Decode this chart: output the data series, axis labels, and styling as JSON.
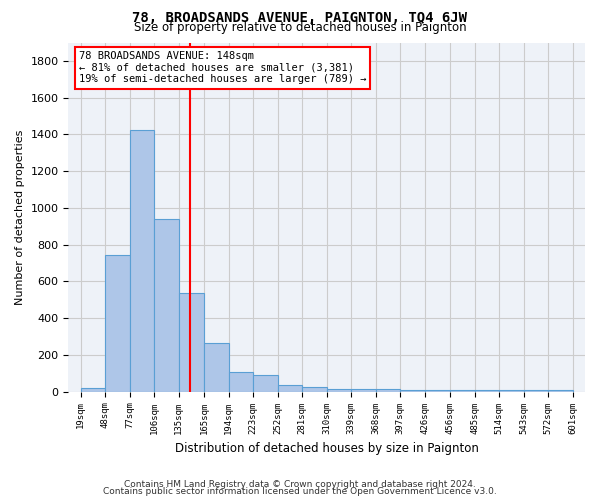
{
  "title": "78, BROADSANDS AVENUE, PAIGNTON, TQ4 6JW",
  "subtitle": "Size of property relative to detached houses in Paignton",
  "xlabel": "Distribution of detached houses by size in Paignton",
  "ylabel": "Number of detached properties",
  "footer_line1": "Contains HM Land Registry data © Crown copyright and database right 2024.",
  "footer_line2": "Contains public sector information licensed under the Open Government Licence v3.0.",
  "bin_edges": [
    19,
    48,
    77,
    106,
    135,
    165,
    194,
    223,
    252,
    281,
    310,
    339,
    368,
    397,
    426,
    456,
    485,
    514,
    543,
    572,
    601
  ],
  "bar_heights": [
    22,
    745,
    1425,
    940,
    535,
    265,
    105,
    92,
    35,
    28,
    15,
    12,
    12,
    10,
    10,
    10,
    10,
    10,
    10,
    10
  ],
  "bar_color": "#aec6e8",
  "bar_edge_color": "#5a9fd4",
  "grid_color": "#cccccc",
  "bg_color": "#eef2f8",
  "annotation_text": "78 BROADSANDS AVENUE: 148sqm\n← 81% of detached houses are smaller (3,381)\n19% of semi-detached houses are larger (789) →",
  "annotation_box_color": "white",
  "annotation_box_edge": "red",
  "red_line_value": 148,
  "ylim": [
    0,
    1900
  ],
  "yticks": [
    0,
    200,
    400,
    600,
    800,
    1000,
    1200,
    1400,
    1600,
    1800
  ]
}
